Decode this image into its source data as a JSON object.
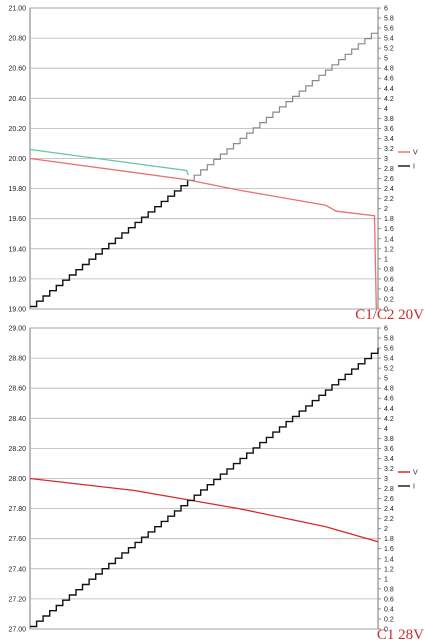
{
  "chart_data": [
    {
      "type": "line",
      "caption": "C1/C2 20V",
      "y_left": {
        "min": 19.0,
        "max": 21.0,
        "step": 0.2,
        "ticks": [
          "19.00",
          "19.20",
          "19.40",
          "19.60",
          "19.80",
          "20.00",
          "20.20",
          "20.40",
          "20.60",
          "20.80",
          "21.00"
        ]
      },
      "y_right": {
        "min": 0,
        "max": 6,
        "step": 0.2,
        "ticks": [
          "0",
          "0.2",
          "0.4",
          "0.6",
          "0.8",
          "1",
          "1.2",
          "1.4",
          "1.6",
          "1.8",
          "2",
          "2.2",
          "2.4",
          "2.6",
          "2.8",
          "3",
          "3.2",
          "3.4",
          "3.6",
          "3.8",
          "4",
          "4.2",
          "4.4",
          "4.6",
          "4.8",
          "5",
          "5.2",
          "5.4",
          "5.6",
          "5.8",
          "6"
        ]
      },
      "x": {
        "min": 0,
        "max": 1
      },
      "grid": true,
      "legend": {
        "placement": "right",
        "entries": [
          {
            "label": "V",
            "color": "#e8726e"
          },
          {
            "label": "I",
            "color": "#222222"
          }
        ]
      },
      "series": [
        {
          "axis": "left",
          "color": "#e8726e",
          "points": [
            [
              0.0,
              20.0
            ],
            [
              0.45,
              19.86
            ],
            [
              0.6,
              19.79
            ],
            [
              0.85,
              19.69
            ],
            [
              0.88,
              19.65
            ],
            [
              0.99,
              19.62
            ],
            [
              0.995,
              19.0
            ]
          ]
        },
        {
          "axis": "left",
          "color": "#66c7a1",
          "points": [
            [
              0.0,
              20.06
            ],
            [
              0.45,
              19.92
            ],
            [
              0.455,
              19.89
            ]
          ]
        },
        {
          "axis": "right",
          "color": "#111111",
          "steps": 53,
          "start": 0.05,
          "end": 5.6,
          "split_x": 0.45,
          "after_color": "#8a8a8a"
        }
      ]
    },
    {
      "type": "line",
      "caption": "C1 28V",
      "y_left": {
        "min": 27.0,
        "max": 29.0,
        "step": 0.2,
        "ticks": [
          "27.00",
          "27.20",
          "27.40",
          "27.60",
          "27.80",
          "28.00",
          "28.20",
          "28.40",
          "28.60",
          "28.80",
          "29.00"
        ]
      },
      "y_right": {
        "min": 0,
        "max": 6,
        "step": 0.2,
        "ticks": [
          "0",
          "0.2",
          "0.4",
          "0.6",
          "0.8",
          "1",
          "1.2",
          "1.4",
          "1.6",
          "1.8",
          "2",
          "2.2",
          "2.4",
          "2.6",
          "2.8",
          "3",
          "3.2",
          "3.4",
          "3.6",
          "3.8",
          "4",
          "4.2",
          "4.4",
          "4.6",
          "4.8",
          "5",
          "5.2",
          "5.4",
          "5.6",
          "5.8",
          "6"
        ]
      },
      "x": {
        "min": 0,
        "max": 1
      },
      "grid": true,
      "legend": {
        "placement": "right",
        "entries": [
          {
            "label": "V",
            "color": "#d62a2a"
          },
          {
            "label": "I",
            "color": "#222222"
          }
        ]
      },
      "series": [
        {
          "axis": "left",
          "color": "#d62a2a",
          "points": [
            [
              0.0,
              28.0
            ],
            [
              0.3,
              27.92
            ],
            [
              0.6,
              27.8
            ],
            [
              0.85,
              27.68
            ],
            [
              1.0,
              27.58
            ]
          ]
        },
        {
          "axis": "right",
          "color": "#111111",
          "steps": 53,
          "start": 0.05,
          "end": 5.6
        }
      ]
    }
  ]
}
